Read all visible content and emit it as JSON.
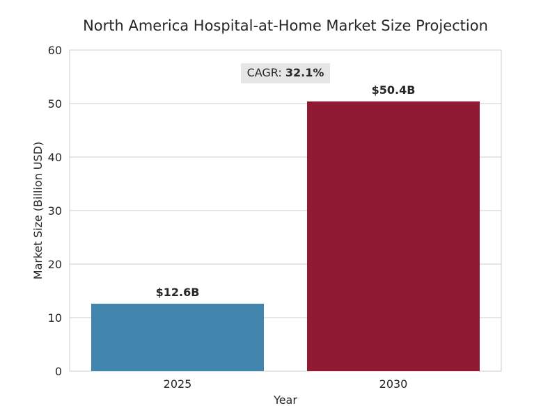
{
  "chart_data": {
    "type": "bar",
    "title": "North America Hospital-at-Home Market Size Projection",
    "xlabel": "Year",
    "ylabel": "Market Size (Billion USD)",
    "categories": [
      "2025",
      "2030"
    ],
    "values": [
      12.6,
      50.4
    ],
    "data_labels": [
      "$12.6B",
      "$50.4B"
    ],
    "colors": [
      "#4286ad",
      "#901a33"
    ],
    "ylim": [
      0,
      60
    ],
    "yticks": [
      0,
      10,
      20,
      30,
      40,
      50,
      60
    ],
    "grid": true,
    "annotation": {
      "label": "CAGR: ",
      "value": "32.1%"
    }
  }
}
